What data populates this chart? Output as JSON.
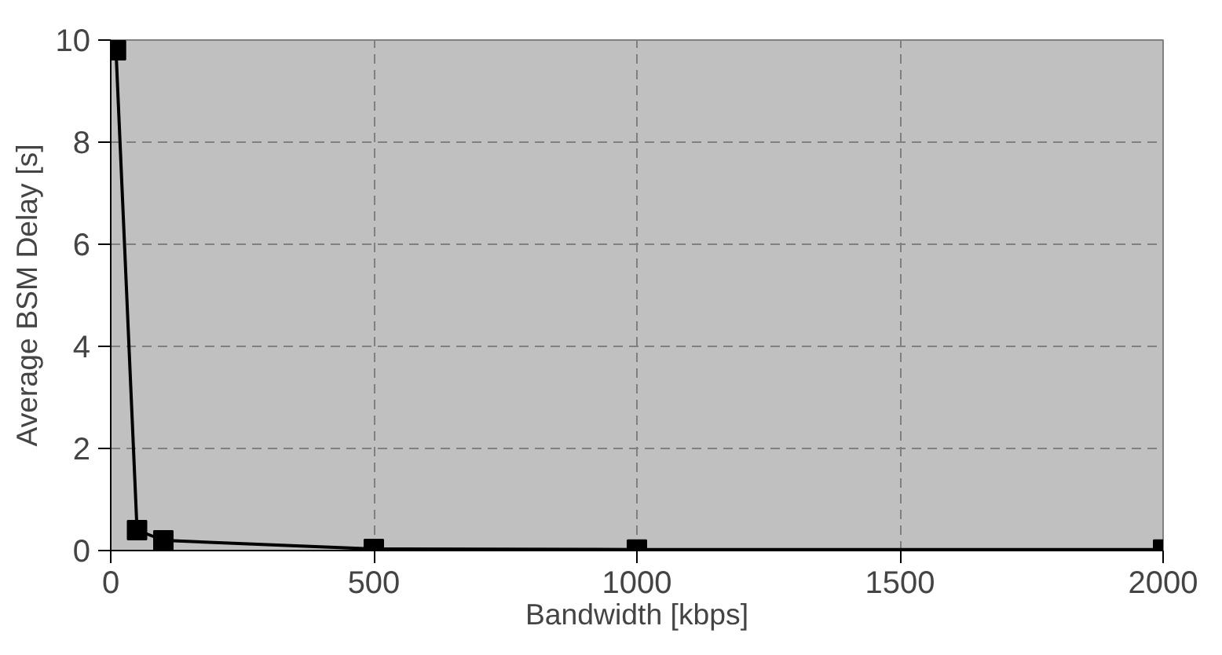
{
  "chart_data": {
    "type": "line",
    "xlabel": "Bandwidth [kbps]",
    "ylabel": "Average BSM Delay [s]",
    "x": [
      10,
      50,
      100,
      500,
      1000,
      2000
    ],
    "series": [
      {
        "color": "#000000",
        "values": [
          9.8,
          0.4,
          0.2,
          0.03,
          0.02,
          0.02
        ]
      }
    ],
    "xlim": [
      0,
      2000
    ],
    "ylim": [
      0,
      10
    ],
    "xticks": [
      0,
      500,
      1000,
      1500,
      2000
    ],
    "yticks": [
      0,
      2,
      4,
      6,
      8,
      10
    ],
    "grid": true,
    "marker": "square",
    "line_style": "solid"
  }
}
